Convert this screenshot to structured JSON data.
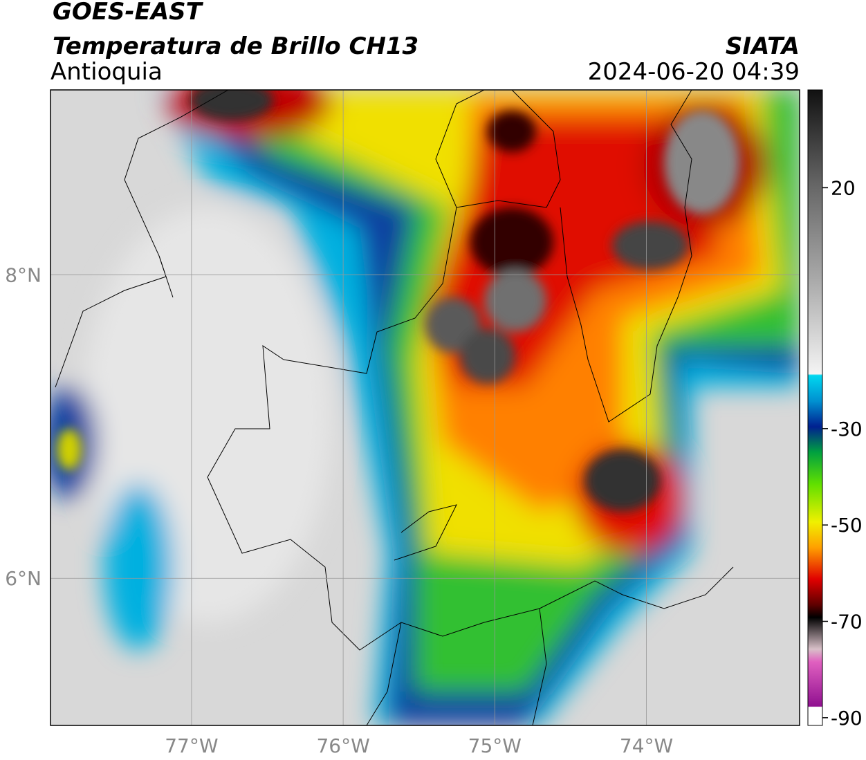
{
  "header": {
    "title": "GOES-EAST",
    "subtitle": "Temperatura de Brillo CH13",
    "region": "Antioquia",
    "source": "SIATA",
    "timestamp": "2024-06-20 04:39"
  },
  "map": {
    "xlim": [
      -77.93,
      -72.99
    ],
    "ylim": [
      5.03,
      9.22
    ],
    "xticks": [
      {
        "value": -77,
        "label": "77°W"
      },
      {
        "value": -76,
        "label": "76°W"
      },
      {
        "value": -75,
        "label": "75°W"
      },
      {
        "value": -74,
        "label": "74°W"
      }
    ],
    "yticks": [
      {
        "value": 8,
        "label": "8°N"
      },
      {
        "value": 6,
        "label": "6°N"
      }
    ],
    "grid": true
  },
  "colorbar": {
    "lim": [
      -91.6,
      40.3
    ],
    "ticks": [
      20,
      -30,
      -50,
      -70,
      -90
    ]
  }
}
